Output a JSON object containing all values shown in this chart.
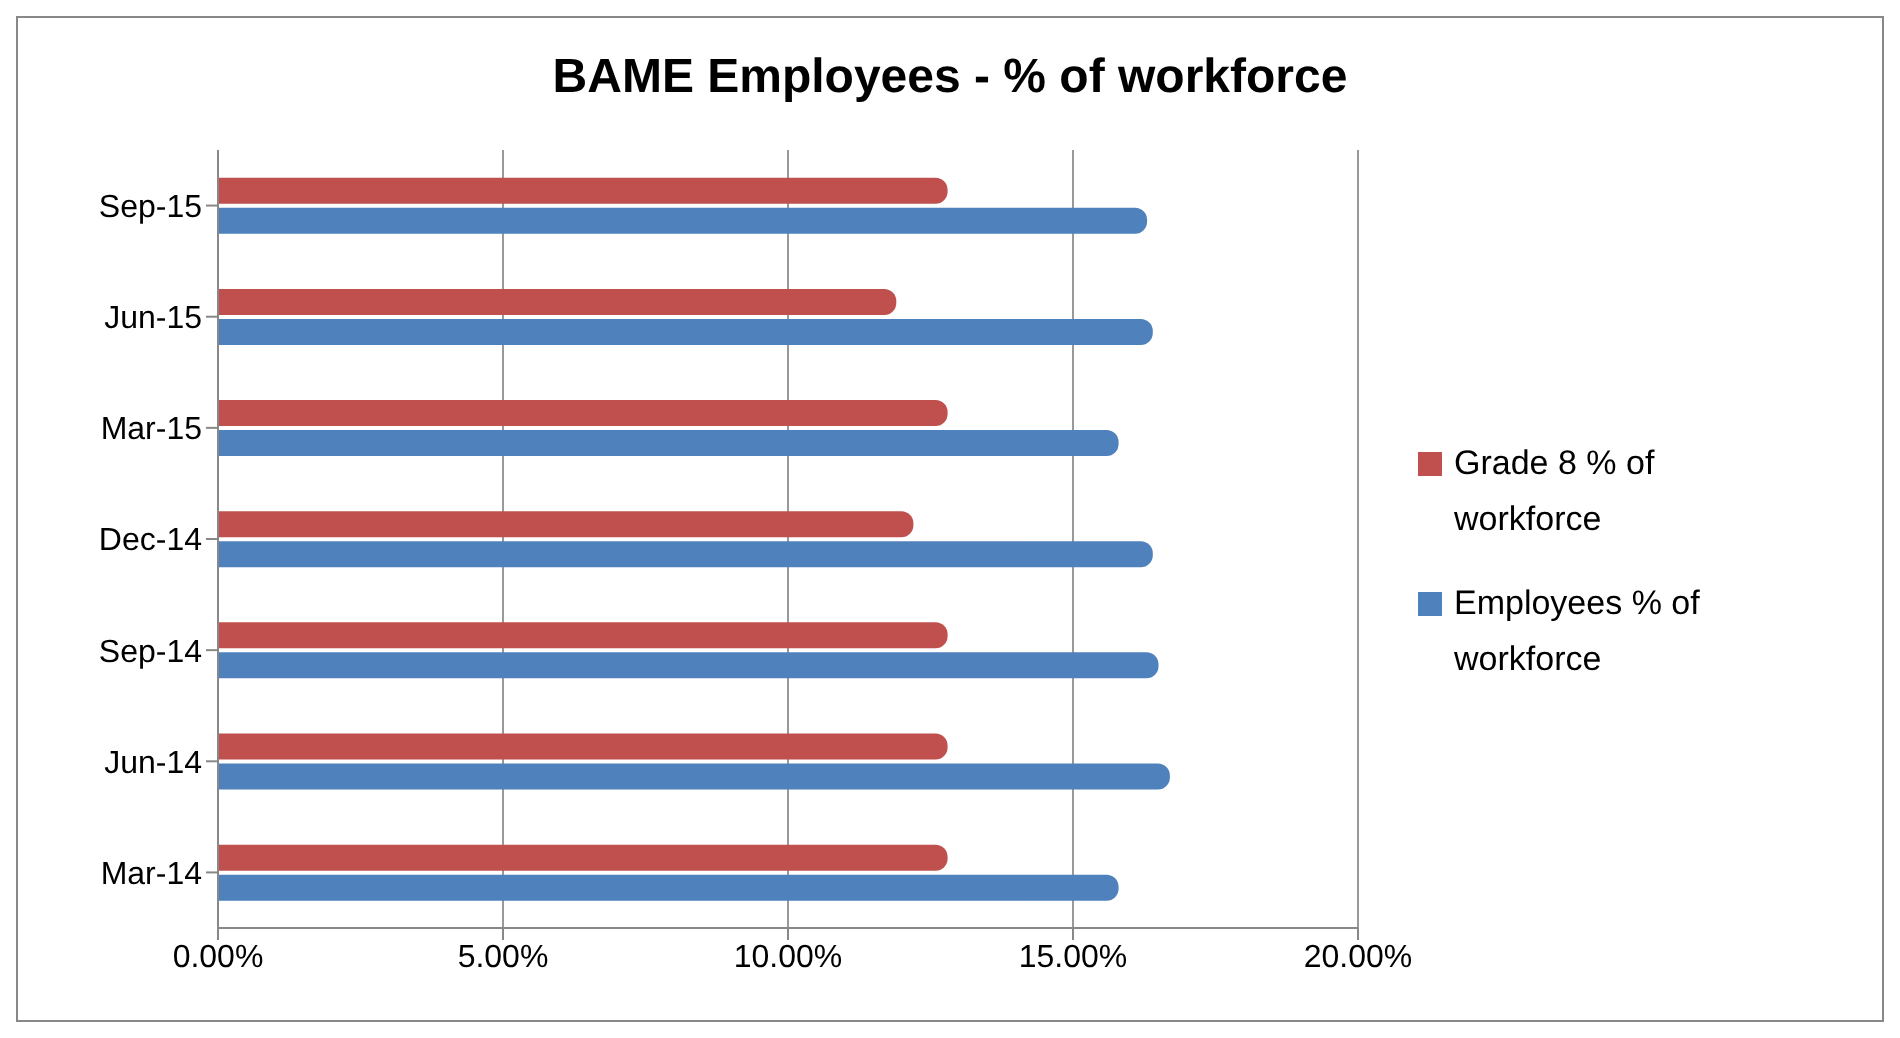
{
  "chart_data": {
    "type": "bar",
    "orientation": "horizontal",
    "title": "BAME Employees - % of workforce",
    "categories": [
      "Sep-15",
      "Jun-15",
      "Mar-15",
      "Dec-14",
      "Sep-14",
      "Jun-14",
      "Mar-14"
    ],
    "series": [
      {
        "name": "Grade 8 % of workforce",
        "color": "#c0504d",
        "values": [
          12.8,
          11.9,
          12.8,
          12.2,
          12.8,
          12.8,
          12.8
        ]
      },
      {
        "name": "Employees % of workforce",
        "color": "#4f81bd",
        "values": [
          16.3,
          16.4,
          15.8,
          16.4,
          16.5,
          16.7,
          15.8
        ]
      }
    ],
    "xlim": [
      0,
      20
    ],
    "xticks": [
      {
        "value": 0,
        "label": "0.00%"
      },
      {
        "value": 5,
        "label": "5.00%"
      },
      {
        "value": 10,
        "label": "10.00%"
      },
      {
        "value": 15,
        "label": "15.00%"
      },
      {
        "value": 20,
        "label": "20.00%"
      }
    ],
    "grid": "x",
    "legend": "right"
  }
}
